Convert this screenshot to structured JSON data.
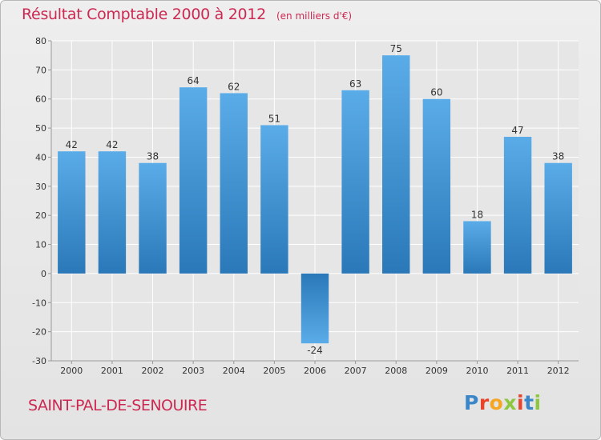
{
  "title": "Résultat Comptable 2000 à 2012",
  "unit": "(en milliers d'€)",
  "place": "SAINT-PAL-DE-SENOUIRE",
  "logo": {
    "text": "Proxiti",
    "letter_colors": [
      "#3a86c8",
      "#e8442c",
      "#f5a623",
      "#8dc63f",
      "#e8442c",
      "#3a86c8",
      "#8dc63f"
    ]
  },
  "colors": {
    "bar_light": "#5aace8",
    "bar_dark": "#2a78b8",
    "title": "#cc2952",
    "grid": "#ffffff"
  },
  "chart_data": {
    "type": "bar",
    "title": "Résultat Comptable 2000 à 2012",
    "xlabel": "",
    "ylabel": "",
    "ylim": [
      -30,
      80
    ],
    "yticks": [
      80,
      70,
      60,
      50,
      40,
      30,
      20,
      10,
      0,
      -10,
      -20,
      -30
    ],
    "grid": true,
    "legend": "none",
    "categories": [
      "2000",
      "2001",
      "2002",
      "2003",
      "2004",
      "2005",
      "2006",
      "2007",
      "2008",
      "2009",
      "2010",
      "2011",
      "2012"
    ],
    "values": [
      42,
      42,
      38,
      64,
      62,
      51,
      -24,
      63,
      75,
      60,
      18,
      47,
      38
    ]
  }
}
